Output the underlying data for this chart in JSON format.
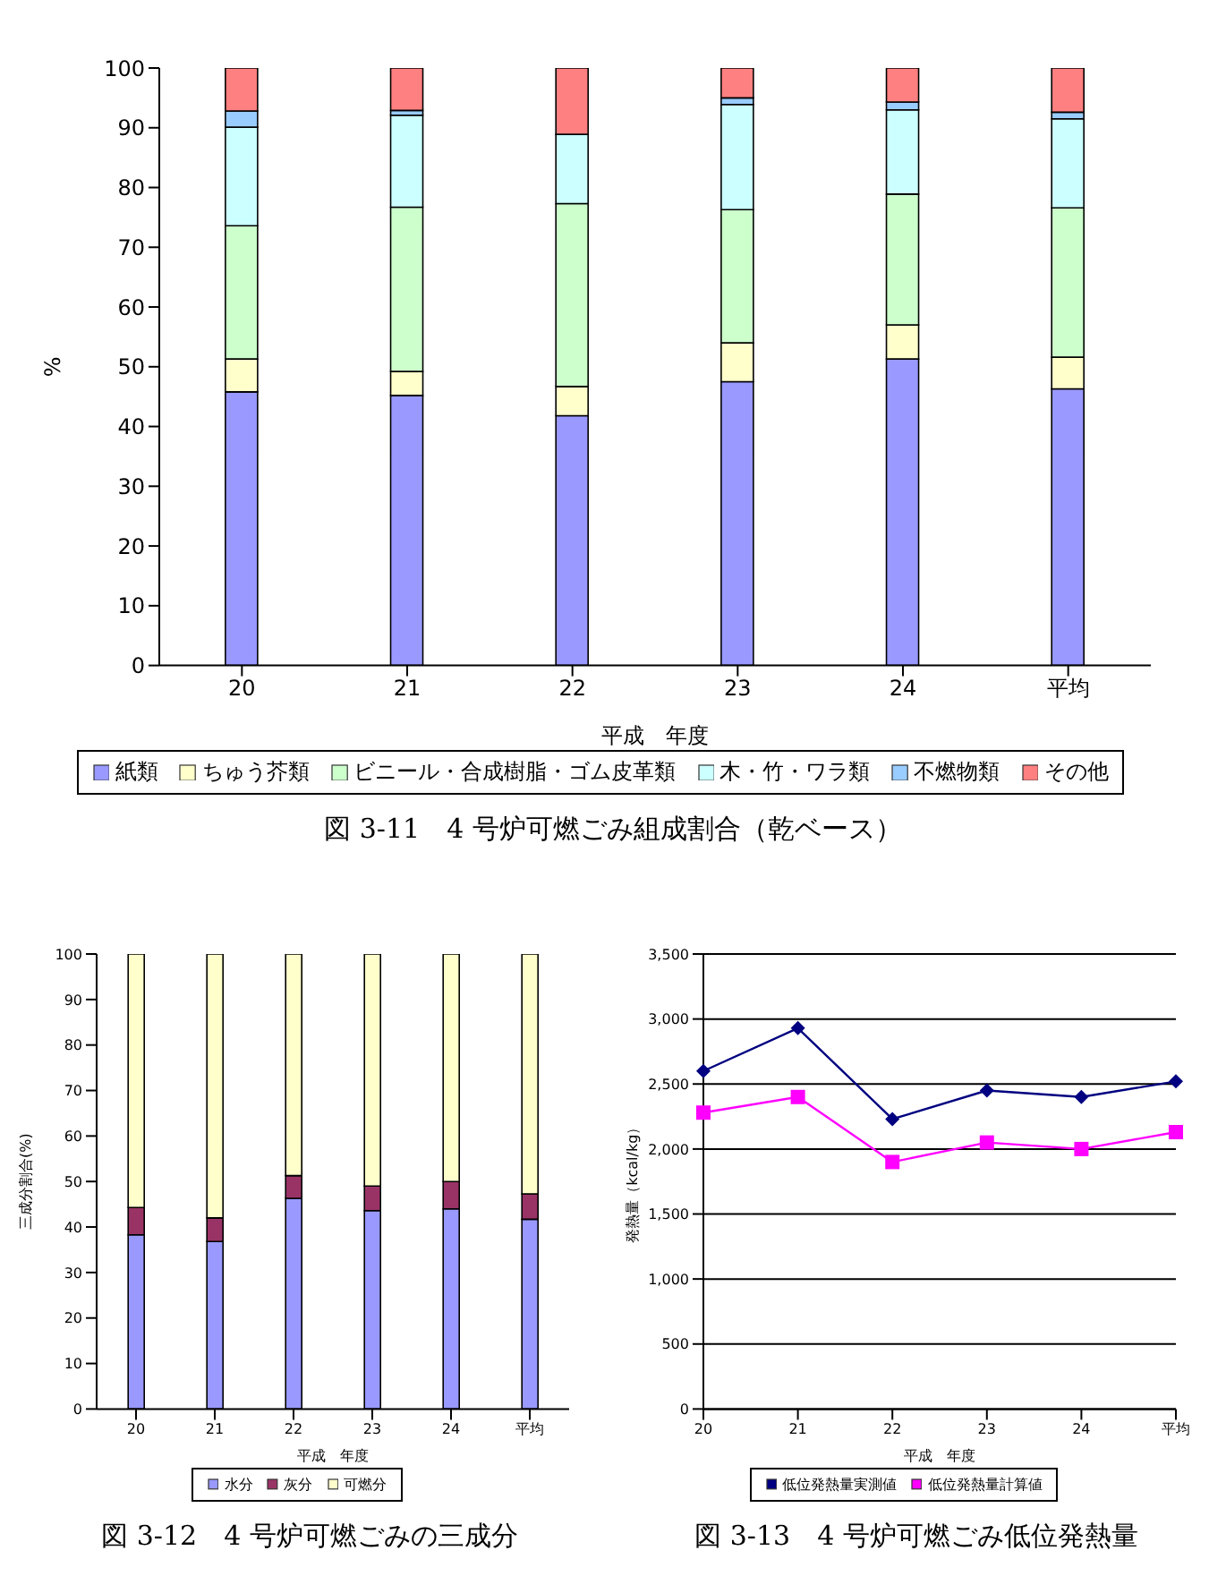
{
  "chart_data": [
    {
      "type": "bar",
      "stacked": true,
      "xlabel": "平成　年度",
      "ylabel": "%",
      "categories": [
        "20",
        "21",
        "22",
        "23",
        "24",
        "平均"
      ],
      "ylim": [
        0,
        100
      ],
      "yticks": [
        0,
        10,
        20,
        30,
        40,
        50,
        60,
        70,
        80,
        90,
        100
      ],
      "legend": "bottom",
      "grid": false,
      "series": [
        {
          "name": "紙類",
          "color": "#9999ff",
          "values": [
            45.8,
            45.2,
            41.8,
            47.5,
            51.3,
            46.3
          ]
        },
        {
          "name": "ちゅう芥類",
          "color": "#ffffcc",
          "values": [
            5.5,
            4.0,
            4.9,
            6.5,
            5.7,
            5.3
          ]
        },
        {
          "name": "ビニール・合成樹脂・ゴム皮革類",
          "color": "#ccffcc",
          "values": [
            22.3,
            27.5,
            30.6,
            22.3,
            21.9,
            25.0
          ]
        },
        {
          "name": "木・竹・ワラ類",
          "color": "#ccffff",
          "values": [
            16.5,
            15.4,
            11.6,
            17.6,
            14.1,
            14.9
          ]
        },
        {
          "name": "不燃物類",
          "color": "#99ccff",
          "values": [
            2.7,
            0.8,
            0,
            1.1,
            1.3,
            1.1
          ]
        },
        {
          "name": "その他",
          "color": "#ff8080",
          "values": [
            7.2,
            7.1,
            11.1,
            5.0,
            5.7,
            7.4
          ]
        }
      ],
      "annotations": [
        "図 3-11　4 号炉可燃ごみ組成割合（乾ベース）"
      ]
    },
    {
      "type": "bar",
      "stacked": true,
      "xlabel": "平成　年度",
      "ylabel": "三成分割合(%)",
      "categories": [
        "20",
        "21",
        "22",
        "23",
        "24",
        "平均"
      ],
      "ylim": [
        0,
        100
      ],
      "yticks": [
        0,
        10,
        20,
        30,
        40,
        50,
        60,
        70,
        80,
        90,
        100
      ],
      "legend": "bottom",
      "grid": false,
      "series": [
        {
          "name": "水分",
          "color": "#9999ff",
          "values": [
            38.3,
            36.8,
            46.3,
            43.6,
            44.0,
            41.7
          ]
        },
        {
          "name": "灰分",
          "color": "#993366",
          "values": [
            6.0,
            5.2,
            5.0,
            5.4,
            6.0,
            5.6
          ]
        },
        {
          "name": "可燃分",
          "color": "#ffffcc",
          "values": [
            55.7,
            58.0,
            48.7,
            51.0,
            50.0,
            52.7
          ]
        }
      ],
      "annotations": [
        "図 3-12　4 号炉可燃ごみの三成分"
      ]
    },
    {
      "type": "line",
      "xlabel": "平成　年度",
      "ylabel": "発熱量（kcal/kg）",
      "categories": [
        "20",
        "21",
        "22",
        "23",
        "24",
        "平均"
      ],
      "ylim": [
        0,
        3500
      ],
      "yticks": [
        0,
        {
          "value": 500,
          "label": "500"
        },
        {
          "value": 1000,
          "label": "1,000"
        },
        {
          "value": 1500,
          "label": "1,500"
        },
        {
          "value": 2000,
          "label": "2,000"
        },
        {
          "value": 2500,
          "label": "2,500"
        },
        {
          "value": 3000,
          "label": "3,000"
        },
        {
          "value": 3500,
          "label": "3,500"
        }
      ],
      "legend": "bottom",
      "grid": "y",
      "series": [
        {
          "name": "低位発熱量実測値",
          "color": "#000080",
          "marker": "diamond",
          "values": [
            2600,
            2930,
            2230,
            2450,
            2400,
            2520
          ]
        },
        {
          "name": "低位発熱量計算値",
          "color": "#ff00ff",
          "marker": "square",
          "values": [
            2280,
            2400,
            1900,
            2050,
            2000,
            2130
          ]
        }
      ],
      "annotations": [
        "図 3-13　4 号炉可燃ごみ低位発熱量"
      ]
    }
  ]
}
